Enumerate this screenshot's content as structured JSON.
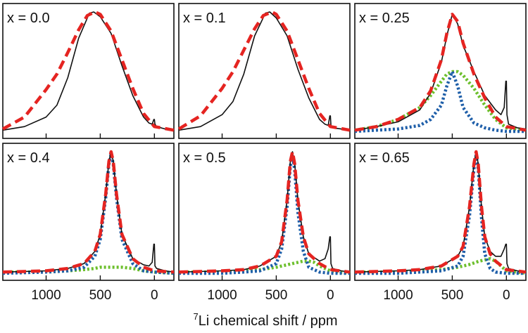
{
  "figure": {
    "xlabel_prefix": "7",
    "xlabel_main": "Li chemical shift / ppm",
    "x_tick_labels": [
      "1000",
      "500",
      "0"
    ]
  },
  "colors": {
    "experimental": "#111111",
    "fit_total": "#e52421",
    "component_1": "#1f5fa9",
    "component_2": "#6cbf2c"
  },
  "chart_data": [
    {
      "type": "line",
      "label": "x = 0.0",
      "xlabel": "7Li chemical shift / ppm",
      "xlim": [
        1400,
        -180
      ],
      "axis_reversed": true,
      "grid": false,
      "series": [
        {
          "name": "experimental",
          "style": "solid",
          "x": [
            1400,
            1200,
            1000,
            900,
            800,
            700,
            600,
            560,
            500,
            400,
            300,
            200,
            100,
            50,
            20,
            5,
            0,
            -5,
            -20,
            -100,
            -180
          ],
          "y": [
            0.01,
            0.04,
            0.12,
            0.22,
            0.45,
            0.78,
            0.99,
            1.0,
            0.96,
            0.82,
            0.55,
            0.3,
            0.12,
            0.07,
            0.06,
            0.1,
            0.1,
            0.06,
            0.04,
            0.02,
            0.01
          ]
        },
        {
          "name": "fit",
          "style": "dashed",
          "x": [
            1400,
            1200,
            1000,
            900,
            800,
            700,
            620,
            550,
            500,
            400,
            300,
            200,
            100,
            0,
            -180
          ],
          "y": [
            0.02,
            0.12,
            0.35,
            0.48,
            0.66,
            0.85,
            0.97,
            1.0,
            0.98,
            0.84,
            0.6,
            0.36,
            0.15,
            0.04,
            0.01
          ]
        }
      ]
    },
    {
      "type": "line",
      "label": "x = 0.1",
      "xlabel": "7Li chemical shift / ppm",
      "xlim": [
        1400,
        -180
      ],
      "axis_reversed": true,
      "grid": false,
      "series": [
        {
          "name": "experimental",
          "style": "solid",
          "x": [
            1400,
            1200,
            1000,
            900,
            800,
            700,
            600,
            560,
            500,
            400,
            300,
            200,
            100,
            50,
            20,
            5,
            0,
            -5,
            -20,
            -100,
            -180
          ],
          "y": [
            0.01,
            0.04,
            0.14,
            0.25,
            0.48,
            0.8,
            0.99,
            1.0,
            0.95,
            0.8,
            0.52,
            0.28,
            0.1,
            0.06,
            0.05,
            0.13,
            0.13,
            0.05,
            0.03,
            0.02,
            0.01
          ]
        },
        {
          "name": "fit",
          "style": "dashed",
          "x": [
            1400,
            1200,
            1000,
            900,
            800,
            700,
            620,
            540,
            500,
            400,
            300,
            200,
            100,
            0,
            -180
          ],
          "y": [
            0.02,
            0.13,
            0.36,
            0.5,
            0.68,
            0.86,
            0.97,
            1.0,
            0.98,
            0.84,
            0.6,
            0.36,
            0.15,
            0.04,
            0.01
          ]
        }
      ]
    },
    {
      "type": "line",
      "label": "x = 0.25",
      "xlabel": "7Li chemical shift / ppm",
      "xlim": [
        1400,
        -180
      ],
      "axis_reversed": true,
      "grid": false,
      "series": [
        {
          "name": "experimental",
          "style": "solid",
          "x": [
            1400,
            1200,
            1000,
            800,
            700,
            600,
            550,
            500,
            450,
            400,
            300,
            200,
            100,
            50,
            20,
            5,
            0,
            -5,
            -20,
            -100,
            -180
          ],
          "y": [
            0.01,
            0.04,
            0.08,
            0.18,
            0.32,
            0.58,
            0.8,
            0.98,
            0.9,
            0.72,
            0.5,
            0.3,
            0.18,
            0.14,
            0.2,
            0.42,
            0.42,
            0.14,
            0.06,
            0.03,
            0.02
          ]
        },
        {
          "name": "fit",
          "style": "dashed",
          "x": [
            1400,
            1200,
            1000,
            800,
            700,
            600,
            550,
            500,
            450,
            400,
            300,
            200,
            100,
            0,
            -180
          ],
          "y": [
            0.01,
            0.04,
            0.1,
            0.2,
            0.34,
            0.6,
            0.82,
            0.98,
            0.92,
            0.74,
            0.48,
            0.28,
            0.12,
            0.04,
            0.01
          ]
        },
        {
          "name": "component 1",
          "style": "dotted",
          "x": [
            1400,
            1200,
            1000,
            800,
            700,
            600,
            550,
            500,
            450,
            400,
            300,
            200,
            100,
            0,
            -180
          ],
          "y": [
            0.0,
            0.01,
            0.02,
            0.05,
            0.1,
            0.22,
            0.38,
            0.5,
            0.38,
            0.2,
            0.07,
            0.03,
            0.01,
            0.0,
            0.0
          ]
        },
        {
          "name": "component 2",
          "style": "dotted",
          "x": [
            1400,
            1200,
            1000,
            800,
            700,
            600,
            550,
            500,
            450,
            400,
            300,
            200,
            100,
            0,
            -180
          ],
          "y": [
            0.01,
            0.04,
            0.1,
            0.2,
            0.3,
            0.42,
            0.48,
            0.5,
            0.5,
            0.47,
            0.36,
            0.22,
            0.1,
            0.03,
            0.01
          ]
        }
      ]
    },
    {
      "type": "line",
      "label": "x = 0.4",
      "xlabel": "7Li chemical shift / ppm",
      "xlim": [
        1400,
        -180
      ],
      "axis_reversed": true,
      "grid": false,
      "series": [
        {
          "name": "experimental",
          "style": "solid",
          "x": [
            1400,
            1000,
            800,
            650,
            550,
            500,
            450,
            420,
            400,
            380,
            350,
            300,
            200,
            100,
            50,
            20,
            5,
            0,
            -5,
            -20,
            -100,
            -180
          ],
          "y": [
            0.01,
            0.02,
            0.04,
            0.08,
            0.18,
            0.32,
            0.65,
            0.92,
            1.0,
            0.92,
            0.65,
            0.32,
            0.12,
            0.07,
            0.06,
            0.09,
            0.24,
            0.24,
            0.06,
            0.04,
            0.02,
            0.01
          ]
        },
        {
          "name": "fit",
          "style": "dashed",
          "x": [
            1400,
            1000,
            800,
            650,
            550,
            500,
            450,
            420,
            400,
            380,
            350,
            300,
            200,
            100,
            0,
            -180
          ],
          "y": [
            0.01,
            0.02,
            0.04,
            0.08,
            0.18,
            0.32,
            0.65,
            0.92,
            1.0,
            0.92,
            0.65,
            0.32,
            0.12,
            0.05,
            0.02,
            0.01
          ]
        },
        {
          "name": "component 1",
          "style": "dotted",
          "x": [
            1400,
            1000,
            800,
            650,
            550,
            500,
            450,
            420,
            400,
            380,
            350,
            300,
            200,
            100,
            0,
            -180
          ],
          "y": [
            0.0,
            0.01,
            0.02,
            0.05,
            0.14,
            0.28,
            0.62,
            0.9,
            0.98,
            0.9,
            0.62,
            0.28,
            0.08,
            0.02,
            0.01,
            0.0
          ]
        },
        {
          "name": "component 2",
          "style": "dotted",
          "x": [
            1400,
            1000,
            800,
            650,
            550,
            500,
            450,
            400,
            350,
            300,
            200,
            100,
            0,
            -180
          ],
          "y": [
            0.01,
            0.01,
            0.02,
            0.03,
            0.04,
            0.05,
            0.05,
            0.05,
            0.05,
            0.05,
            0.04,
            0.02,
            0.01,
            0.0
          ]
        }
      ]
    },
    {
      "type": "line",
      "label": "x = 0.5",
      "xlabel": "7Li chemical shift / ppm",
      "xlim": [
        1400,
        -180
      ],
      "axis_reversed": true,
      "grid": false,
      "series": [
        {
          "name": "experimental",
          "style": "solid",
          "x": [
            1400,
            1000,
            800,
            650,
            500,
            450,
            400,
            370,
            350,
            330,
            300,
            250,
            200,
            100,
            50,
            20,
            5,
            0,
            -5,
            -20,
            -100,
            -180
          ],
          "y": [
            0.01,
            0.02,
            0.03,
            0.06,
            0.14,
            0.26,
            0.6,
            0.92,
            1.0,
            0.9,
            0.6,
            0.3,
            0.16,
            0.1,
            0.12,
            0.2,
            0.3,
            0.3,
            0.08,
            0.04,
            0.02,
            0.01
          ]
        },
        {
          "name": "fit",
          "style": "dashed",
          "x": [
            1400,
            1000,
            800,
            650,
            500,
            450,
            400,
            370,
            350,
            330,
            300,
            250,
            200,
            100,
            0,
            -180
          ],
          "y": [
            0.01,
            0.02,
            0.03,
            0.06,
            0.14,
            0.26,
            0.6,
            0.92,
            1.0,
            0.9,
            0.6,
            0.3,
            0.16,
            0.08,
            0.03,
            0.01
          ]
        },
        {
          "name": "component 1",
          "style": "dotted",
          "x": [
            1400,
            1000,
            800,
            650,
            500,
            450,
            400,
            370,
            350,
            330,
            300,
            250,
            200,
            100,
            0,
            -180
          ],
          "y": [
            0.0,
            0.0,
            0.01,
            0.02,
            0.08,
            0.2,
            0.55,
            0.88,
            0.97,
            0.85,
            0.5,
            0.18,
            0.05,
            0.01,
            0.0,
            0.0
          ]
        },
        {
          "name": "component 2",
          "style": "dotted",
          "x": [
            1400,
            1000,
            800,
            650,
            500,
            400,
            300,
            250,
            200,
            150,
            100,
            50,
            0,
            -180
          ],
          "y": [
            0.01,
            0.01,
            0.02,
            0.03,
            0.05,
            0.07,
            0.09,
            0.1,
            0.1,
            0.09,
            0.06,
            0.04,
            0.02,
            0.0
          ]
        }
      ]
    },
    {
      "type": "line",
      "label": "x = 0.65",
      "xlabel": "7Li chemical shift / ppm",
      "xlim": [
        1400,
        -180
      ],
      "axis_reversed": true,
      "grid": false,
      "series": [
        {
          "name": "experimental",
          "style": "solid",
          "x": [
            1400,
            1000,
            800,
            600,
            450,
            400,
            340,
            300,
            280,
            260,
            230,
            200,
            150,
            100,
            50,
            20,
            5,
            0,
            -5,
            -20,
            -100,
            -180
          ],
          "y": [
            0.01,
            0.02,
            0.03,
            0.06,
            0.14,
            0.22,
            0.55,
            0.9,
            1.0,
            0.9,
            0.55,
            0.3,
            0.18,
            0.14,
            0.14,
            0.2,
            0.24,
            0.24,
            0.08,
            0.04,
            0.02,
            0.01
          ]
        },
        {
          "name": "fit",
          "style": "dashed",
          "x": [
            1400,
            1000,
            800,
            600,
            450,
            400,
            340,
            300,
            280,
            260,
            230,
            200,
            150,
            100,
            0,
            -180
          ],
          "y": [
            0.01,
            0.02,
            0.03,
            0.06,
            0.14,
            0.22,
            0.55,
            0.9,
            1.0,
            0.9,
            0.55,
            0.3,
            0.16,
            0.1,
            0.03,
            0.01
          ]
        },
        {
          "name": "component 1",
          "style": "dotted",
          "x": [
            1400,
            1000,
            800,
            600,
            450,
            400,
            340,
            300,
            280,
            260,
            230,
            200,
            150,
            100,
            0,
            -180
          ],
          "y": [
            0.0,
            0.0,
            0.01,
            0.02,
            0.06,
            0.14,
            0.48,
            0.86,
            0.97,
            0.86,
            0.46,
            0.16,
            0.04,
            0.01,
            0.0,
            0.0
          ]
        },
        {
          "name": "component 2",
          "style": "dotted",
          "x": [
            1400,
            1000,
            800,
            600,
            450,
            350,
            250,
            200,
            150,
            100,
            50,
            0,
            -180
          ],
          "y": [
            0.01,
            0.01,
            0.02,
            0.03,
            0.05,
            0.07,
            0.1,
            0.11,
            0.12,
            0.1,
            0.06,
            0.02,
            0.0
          ]
        }
      ]
    }
  ]
}
